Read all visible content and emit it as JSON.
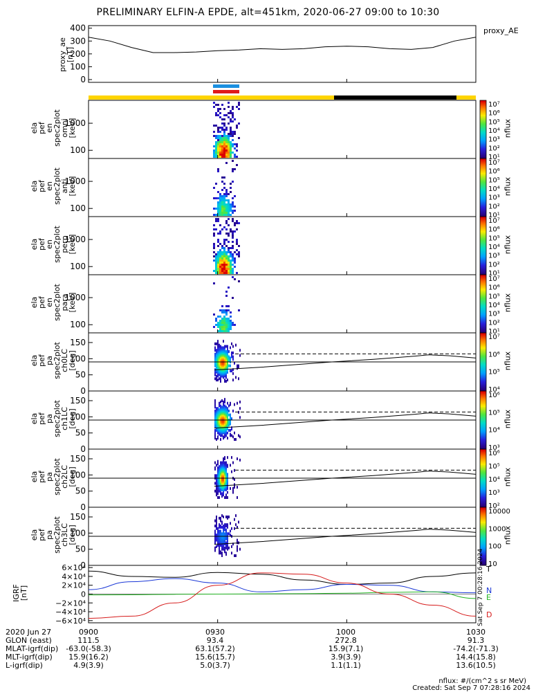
{
  "title": "PRELIMINARY ELFIN-A EPDE, alt=451km, 2020-06-27 09:00 to 10:30",
  "proxy_panel": {
    "ylabel": "proxy_ae\n[nT]",
    "series_name": "proxy_AE",
    "ticks": [
      "400",
      "300",
      "200",
      "100",
      "0"
    ]
  },
  "spec_panels": [
    {
      "ylabel": "ela\npef\nen\nspec2plot\nomni\n[keV]",
      "ticks": [
        "1000",
        "100"
      ],
      "unit": "nflux"
    },
    {
      "ylabel": "ela\npef\nen\nspec2plot\nanti\n[keV]",
      "ticks": [
        "1000",
        "100"
      ],
      "unit": "nflux"
    },
    {
      "ylabel": "ela\npef\nen\nspec2plot\nperp\n[keV]",
      "ticks": [
        "1000",
        "100"
      ],
      "unit": "nflux"
    },
    {
      "ylabel": "ela\npef\nen\nspec2plot\npara\n[keV]",
      "ticks": [
        "1000",
        "100"
      ],
      "unit": "nflux"
    }
  ],
  "pa_panels": [
    {
      "ylabel": "ela\npef\npa\nspec2plot\nch0LC\n[deg]",
      "ticks": [
        "150",
        "100",
        "50",
        "0"
      ],
      "unit": "nflux"
    },
    {
      "ylabel": "ela\npef\npa\nspec2plot\nch1LC\n[deg]",
      "ticks": [
        "150",
        "100",
        "50",
        "0"
      ],
      "unit": "nflux"
    },
    {
      "ylabel": "ela\npef\npa\nspec2plot\nch2LC\n[deg]",
      "ticks": [
        "150",
        "100",
        "50",
        "0"
      ],
      "unit": "nflux"
    },
    {
      "ylabel": "ela\npef\npa\nspec2plot\nch3LC\n[deg]",
      "ticks": [
        "150",
        "100",
        "50",
        "0"
      ],
      "unit": "nflux"
    }
  ],
  "igrf_panel": {
    "ylabel": "IGRF\n[nT]",
    "ticks": [
      "6×10⁴",
      "4×10⁴",
      "2×10⁴",
      "0",
      "−2×10⁴",
      "−4×10⁴",
      "−6×10⁴"
    ],
    "series": [
      "T",
      "N",
      "E",
      "D"
    ],
    "side_note": "Sat Sep  7 00:28:16 2024"
  },
  "colorbars": {
    "spec": [
      "10⁷",
      "10⁶",
      "10⁵",
      "10⁴",
      "10³",
      "10²",
      "10¹"
    ],
    "pa0": [
      "10⁷",
      "10⁶",
      "10⁵",
      "10⁴"
    ],
    "pa1": [
      "10⁶",
      "10⁵",
      "10⁴",
      "10³"
    ],
    "pa2": [
      "10⁶",
      "10⁵",
      "10⁴",
      "10³",
      "10²"
    ],
    "pa3": [
      "10000",
      "1000",
      "100",
      "10"
    ]
  },
  "footer": {
    "rows": [
      {
        "label": "2020 Jun 27",
        "values": [
          "0900",
          "0930",
          "1000",
          "1030"
        ]
      },
      {
        "label": "GLON (east)",
        "values": [
          "111.5",
          "93.4",
          "272.8",
          "91.3"
        ]
      },
      {
        "label": "MLAT-igrf(dip)",
        "values": [
          "-63.0(-58.3)",
          "63.1(57.2)",
          "15.9(7.1)",
          "-74.2(-71.3)"
        ]
      },
      {
        "label": "MLT-igrf(dip)",
        "values": [
          "15.9(16.2)",
          "15.6(15.7)",
          "3.9(3.9)",
          "14.4(15.8)"
        ]
      },
      {
        "label": "L-igrf(dip)",
        "values": [
          "4.9(3.9)",
          "5.0(3.7)",
          "1.1(1.1)",
          "13.6(10.5)"
        ]
      }
    ],
    "credit_line1": "nflux: #/(cm^2 s sr MeV)",
    "credit_line2": "Created: Sat Sep  7 07:28:16 2024"
  },
  "chart_data": {
    "type": "line",
    "x_range": [
      "2020-06-27 09:00",
      "2020-06-27 10:30"
    ],
    "x_ticks": [
      "0900",
      "0930",
      "1000",
      "1030"
    ],
    "proxy_AE": {
      "x": [
        "09:00",
        "09:05",
        "09:10",
        "09:15",
        "09:20",
        "09:25",
        "09:30",
        "09:35",
        "09:40",
        "09:45",
        "09:50",
        "09:55",
        "10:00",
        "10:05",
        "10:10",
        "10:15",
        "10:20",
        "10:25",
        "10:30"
      ],
      "values": [
        330,
        300,
        250,
        210,
        210,
        215,
        225,
        230,
        240,
        235,
        240,
        255,
        260,
        255,
        240,
        235,
        250,
        300,
        330
      ],
      "ylim": [
        0,
        420
      ]
    },
    "igrf": {
      "x": [
        "09:00",
        "09:10",
        "09:20",
        "09:30",
        "09:40",
        "09:50",
        "10:00",
        "10:10",
        "10:20",
        "10:30"
      ],
      "T": [
        52000,
        40000,
        38000,
        49000,
        45000,
        32000,
        22000,
        25000,
        40000,
        48000
      ],
      "N": [
        10000,
        28000,
        35000,
        25000,
        5000,
        10000,
        22000,
        20000,
        5000,
        3000
      ],
      "E": [
        -2000,
        -1500,
        -500,
        0,
        500,
        1000,
        2000,
        4000,
        5000,
        -10000
      ],
      "D": [
        -55000,
        -50000,
        -20000,
        20000,
        48000,
        45000,
        25000,
        0,
        -25000,
        -50000
      ],
      "ylim": [
        -65000,
        65000
      ]
    }
  }
}
